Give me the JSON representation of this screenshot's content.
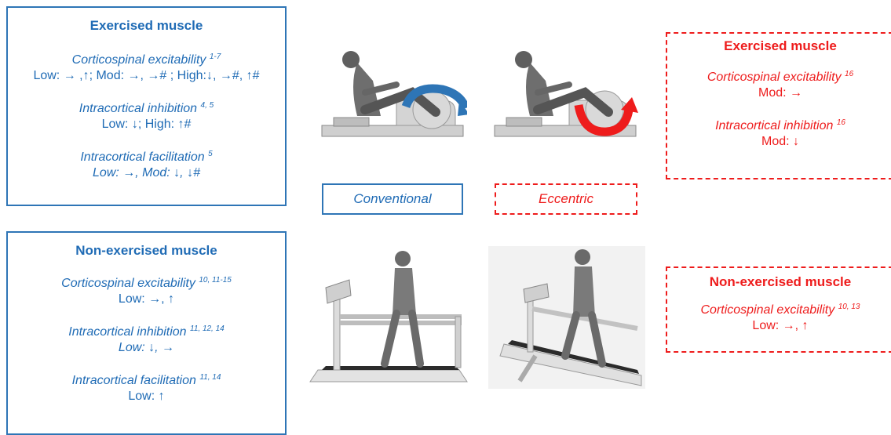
{
  "conventional_exercised": {
    "title": "Exercised muscle",
    "groups": [
      {
        "name": "Corticospinal excitability",
        "sup": "1-7",
        "value": "Low: → ,↑; Mod: →, →# ; High:↓, →#, ↑#"
      },
      {
        "name": "Intracortical inhibition",
        "sup": "4, 5",
        "value": "Low: ↓; High: ↑#"
      },
      {
        "name": "Intracortical facilitation",
        "sup": "5",
        "value": "Low: →, Mod: ↓, ↓#"
      }
    ]
  },
  "conventional_nonexercised": {
    "title": "Non-exercised muscle",
    "groups": [
      {
        "name": "Corticospinal excitability",
        "sup": "10, 11-15",
        "value": "Low: →, ↑"
      },
      {
        "name": "Intracortical inhibition",
        "sup": "11, 12, 14",
        "value": "Low: ↓, →"
      },
      {
        "name": "Intracortical facilitation",
        "sup": "11, 14",
        "value": "Low: ↑"
      }
    ]
  },
  "eccentric_exercised": {
    "title": "Exercised muscle",
    "groups": [
      {
        "name": "Corticospinal excitability",
        "sup": "16",
        "value": "Mod: →"
      },
      {
        "name": "Intracortical inhibition",
        "sup": "16",
        "value": "Mod: ↓"
      }
    ]
  },
  "eccentric_nonexercised": {
    "title": "Non-exercised muscle",
    "groups": [
      {
        "name": "Corticospinal excitability",
        "sup": "10, 13",
        "value": "Low: →, ↑"
      }
    ]
  },
  "labels": {
    "conventional": "Conventional",
    "eccentric": "Eccentric"
  },
  "colors": {
    "conventional": "#2e75b6",
    "eccentric": "#ee1c1c"
  },
  "icons": [
    "recumbent-cycle-conventional-illustration",
    "recumbent-cycle-eccentric-illustration",
    "treadmill-walking-conventional-illustration",
    "treadmill-walking-downhill-illustration"
  ]
}
